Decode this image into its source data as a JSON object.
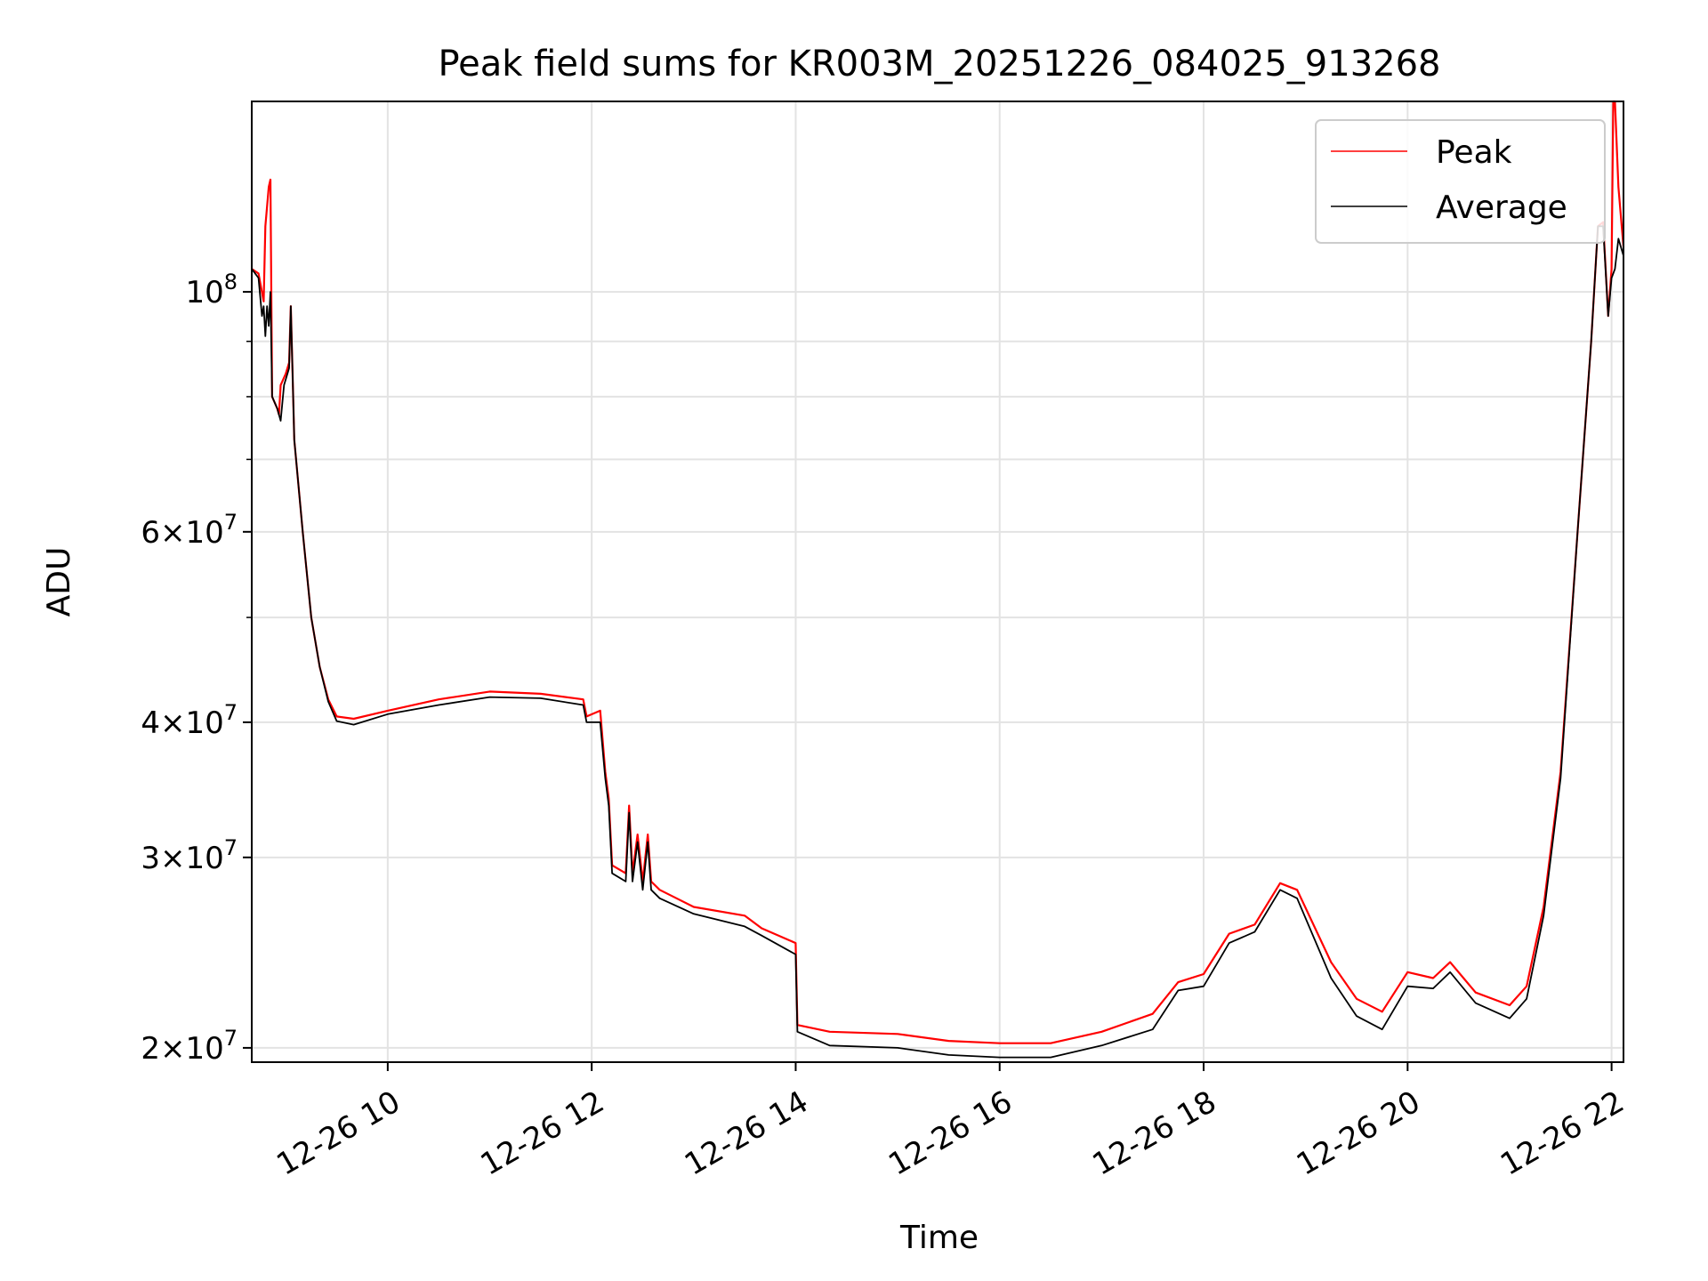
{
  "chart_data": {
    "type": "line",
    "title": "Peak field sums for KR003M_20251226_084025_913268",
    "xlabel": "Time",
    "ylabel": "ADU",
    "y_scale": "log",
    "x_domain": [
      "2025-12-26 08:40",
      "2025-12-26 22:07"
    ],
    "ylim": [
      19400000,
      150000000
    ],
    "grid": true,
    "legend_position": "top-right",
    "x_ticks": [
      {
        "t": "2025-12-26 10:00",
        "label": "12-26 10"
      },
      {
        "t": "2025-12-26 12:00",
        "label": "12-26 12"
      },
      {
        "t": "2025-12-26 14:00",
        "label": "12-26 14"
      },
      {
        "t": "2025-12-26 16:00",
        "label": "12-26 16"
      },
      {
        "t": "2025-12-26 18:00",
        "label": "12-26 18"
      },
      {
        "t": "2025-12-26 20:00",
        "label": "12-26 20"
      },
      {
        "t": "2025-12-26 22:00",
        "label": "12-26 22"
      }
    ],
    "y_ticks": [
      {
        "v": 20000000,
        "base": "2×10",
        "exp": "7"
      },
      {
        "v": 30000000,
        "base": "3×10",
        "exp": "7"
      },
      {
        "v": 40000000,
        "base": "4×10",
        "exp": "7"
      },
      {
        "v": 60000000,
        "base": "6×10",
        "exp": "7"
      },
      {
        "v": 100000000,
        "base": "10",
        "exp": "8"
      }
    ],
    "y_minor_ticks": [
      50000000,
      70000000,
      80000000,
      90000000
    ],
    "series": [
      {
        "name": "Peak",
        "color": "#ff0000",
        "points": [
          [
            "2025-12-26 08:40",
            105000000
          ],
          [
            "2025-12-26 08:44",
            104000000
          ],
          [
            "2025-12-26 08:47",
            98000000
          ],
          [
            "2025-12-26 08:48",
            115000000
          ],
          [
            "2025-12-26 08:50",
            125000000
          ],
          [
            "2025-12-26 08:51",
            127000000
          ],
          [
            "2025-12-26 08:52",
            80000000
          ],
          [
            "2025-12-26 08:55",
            78000000
          ],
          [
            "2025-12-26 08:56",
            77000000
          ],
          [
            "2025-12-26 08:57",
            82000000
          ],
          [
            "2025-12-26 09:00",
            84000000
          ],
          [
            "2025-12-26 09:02",
            86000000
          ],
          [
            "2025-12-26 09:03",
            97000000
          ],
          [
            "2025-12-26 09:04",
            84000000
          ],
          [
            "2025-12-26 09:05",
            73000000
          ],
          [
            "2025-12-26 09:10",
            60000000
          ],
          [
            "2025-12-26 09:15",
            50000000
          ],
          [
            "2025-12-26 09:20",
            45000000
          ],
          [
            "2025-12-26 09:25",
            42000000
          ],
          [
            "2025-12-26 09:30",
            40500000
          ],
          [
            "2025-12-26 09:40",
            40300000
          ],
          [
            "2025-12-26 10:00",
            41000000
          ],
          [
            "2025-12-26 10:30",
            42000000
          ],
          [
            "2025-12-26 11:00",
            42700000
          ],
          [
            "2025-12-26 11:30",
            42500000
          ],
          [
            "2025-12-26 11:55",
            42000000
          ],
          [
            "2025-12-26 11:57",
            40500000
          ],
          [
            "2025-12-26 12:05",
            41000000
          ],
          [
            "2025-12-26 12:08",
            36000000
          ],
          [
            "2025-12-26 12:10",
            34000000
          ],
          [
            "2025-12-26 12:12",
            29500000
          ],
          [
            "2025-12-26 12:20",
            29000000
          ],
          [
            "2025-12-26 12:22",
            33500000
          ],
          [
            "2025-12-26 12:24",
            29000000
          ],
          [
            "2025-12-26 12:27",
            31500000
          ],
          [
            "2025-12-26 12:30",
            28500000
          ],
          [
            "2025-12-26 12:33",
            31500000
          ],
          [
            "2025-12-26 12:35",
            28500000
          ],
          [
            "2025-12-26 12:40",
            28000000
          ],
          [
            "2025-12-26 13:00",
            27000000
          ],
          [
            "2025-12-26 13:30",
            26500000
          ],
          [
            "2025-12-26 13:40",
            25800000
          ],
          [
            "2025-12-26 14:00",
            25000000
          ],
          [
            "2025-12-26 14:01",
            21000000
          ],
          [
            "2025-12-26 14:20",
            20700000
          ],
          [
            "2025-12-26 15:00",
            20600000
          ],
          [
            "2025-12-26 15:30",
            20300000
          ],
          [
            "2025-12-26 16:00",
            20200000
          ],
          [
            "2025-12-26 16:30",
            20200000
          ],
          [
            "2025-12-26 17:00",
            20700000
          ],
          [
            "2025-12-26 17:30",
            21500000
          ],
          [
            "2025-12-26 17:45",
            23000000
          ],
          [
            "2025-12-26 18:00",
            23400000
          ],
          [
            "2025-12-26 18:15",
            25500000
          ],
          [
            "2025-12-26 18:30",
            26000000
          ],
          [
            "2025-12-26 18:45",
            28400000
          ],
          [
            "2025-12-26 18:55",
            28000000
          ],
          [
            "2025-12-26 19:15",
            24000000
          ],
          [
            "2025-12-26 19:30",
            22200000
          ],
          [
            "2025-12-26 19:45",
            21600000
          ],
          [
            "2025-12-26 20:00",
            23500000
          ],
          [
            "2025-12-26 20:15",
            23200000
          ],
          [
            "2025-12-26 20:25",
            24000000
          ],
          [
            "2025-12-26 20:40",
            22500000
          ],
          [
            "2025-12-26 21:00",
            21900000
          ],
          [
            "2025-12-26 21:10",
            22800000
          ],
          [
            "2025-12-26 21:20",
            27000000
          ],
          [
            "2025-12-26 21:30",
            36000000
          ],
          [
            "2025-12-26 21:40",
            60000000
          ],
          [
            "2025-12-26 21:48",
            90000000
          ],
          [
            "2025-12-26 21:52",
            115000000
          ],
          [
            "2025-12-26 21:55",
            116000000
          ],
          [
            "2025-12-26 21:58",
            95000000
          ],
          [
            "2025-12-26 22:00",
            105000000
          ],
          [
            "2025-12-26 22:01",
            150000000
          ],
          [
            "2025-12-26 22:02",
            150000000
          ],
          [
            "2025-12-26 22:04",
            125000000
          ],
          [
            "2025-12-26 22:07",
            110000000
          ]
        ]
      },
      {
        "name": "Average",
        "color": "#000000",
        "points": [
          [
            "2025-12-26 08:40",
            105000000
          ],
          [
            "2025-12-26 08:44",
            103000000
          ],
          [
            "2025-12-26 08:46",
            95000000
          ],
          [
            "2025-12-26 08:47",
            97000000
          ],
          [
            "2025-12-26 08:48",
            91000000
          ],
          [
            "2025-12-26 08:49",
            97000000
          ],
          [
            "2025-12-26 08:50",
            93000000
          ],
          [
            "2025-12-26 08:51",
            100000000
          ],
          [
            "2025-12-26 08:52",
            80000000
          ],
          [
            "2025-12-26 08:55",
            78000000
          ],
          [
            "2025-12-26 08:57",
            76000000
          ],
          [
            "2025-12-26 08:59",
            82000000
          ],
          [
            "2025-12-26 09:02",
            85000000
          ],
          [
            "2025-12-26 09:03",
            97000000
          ],
          [
            "2025-12-26 09:04",
            84000000
          ],
          [
            "2025-12-26 09:05",
            73000000
          ],
          [
            "2025-12-26 09:10",
            60000000
          ],
          [
            "2025-12-26 09:15",
            50000000
          ],
          [
            "2025-12-26 09:20",
            45000000
          ],
          [
            "2025-12-26 09:25",
            41800000
          ],
          [
            "2025-12-26 09:30",
            40100000
          ],
          [
            "2025-12-26 09:40",
            39800000
          ],
          [
            "2025-12-26 10:00",
            40700000
          ],
          [
            "2025-12-26 10:30",
            41500000
          ],
          [
            "2025-12-26 11:00",
            42200000
          ],
          [
            "2025-12-26 11:30",
            42100000
          ],
          [
            "2025-12-26 11:55",
            41500000
          ],
          [
            "2025-12-26 11:57",
            40000000
          ],
          [
            "2025-12-26 12:05",
            40000000
          ],
          [
            "2025-12-26 12:08",
            35500000
          ],
          [
            "2025-12-26 12:10",
            33500000
          ],
          [
            "2025-12-26 12:12",
            29000000
          ],
          [
            "2025-12-26 12:20",
            28500000
          ],
          [
            "2025-12-26 12:22",
            33000000
          ],
          [
            "2025-12-26 12:24",
            28500000
          ],
          [
            "2025-12-26 12:27",
            31000000
          ],
          [
            "2025-12-26 12:30",
            28000000
          ],
          [
            "2025-12-26 12:33",
            31000000
          ],
          [
            "2025-12-26 12:35",
            28000000
          ],
          [
            "2025-12-26 12:40",
            27500000
          ],
          [
            "2025-12-26 13:00",
            26600000
          ],
          [
            "2025-12-26 13:30",
            25900000
          ],
          [
            "2025-12-26 13:40",
            25400000
          ],
          [
            "2025-12-26 14:00",
            24400000
          ],
          [
            "2025-12-26 14:01",
            20700000
          ],
          [
            "2025-12-26 14:20",
            20100000
          ],
          [
            "2025-12-26 15:00",
            20000000
          ],
          [
            "2025-12-26 15:30",
            19700000
          ],
          [
            "2025-12-26 16:00",
            19600000
          ],
          [
            "2025-12-26 16:30",
            19600000
          ],
          [
            "2025-12-26 17:00",
            20100000
          ],
          [
            "2025-12-26 17:30",
            20800000
          ],
          [
            "2025-12-26 17:45",
            22600000
          ],
          [
            "2025-12-26 18:00",
            22800000
          ],
          [
            "2025-12-26 18:15",
            25000000
          ],
          [
            "2025-12-26 18:30",
            25600000
          ],
          [
            "2025-12-26 18:45",
            28000000
          ],
          [
            "2025-12-26 18:55",
            27500000
          ],
          [
            "2025-12-26 19:15",
            23200000
          ],
          [
            "2025-12-26 19:30",
            21400000
          ],
          [
            "2025-12-26 19:45",
            20800000
          ],
          [
            "2025-12-26 20:00",
            22800000
          ],
          [
            "2025-12-26 20:15",
            22700000
          ],
          [
            "2025-12-26 20:25",
            23500000
          ],
          [
            "2025-12-26 20:40",
            22000000
          ],
          [
            "2025-12-26 21:00",
            21300000
          ],
          [
            "2025-12-26 21:10",
            22200000
          ],
          [
            "2025-12-26 21:20",
            26500000
          ],
          [
            "2025-12-26 21:30",
            35500000
          ],
          [
            "2025-12-26 21:40",
            60000000
          ],
          [
            "2025-12-26 21:48",
            90000000
          ],
          [
            "2025-12-26 21:52",
            115000000
          ],
          [
            "2025-12-26 21:55",
            115000000
          ],
          [
            "2025-12-26 21:58",
            95000000
          ],
          [
            "2025-12-26 22:00",
            103000000
          ],
          [
            "2025-12-26 22:02",
            105000000
          ],
          [
            "2025-12-26 22:04",
            112000000
          ],
          [
            "2025-12-26 22:07",
            108000000
          ]
        ]
      }
    ]
  }
}
